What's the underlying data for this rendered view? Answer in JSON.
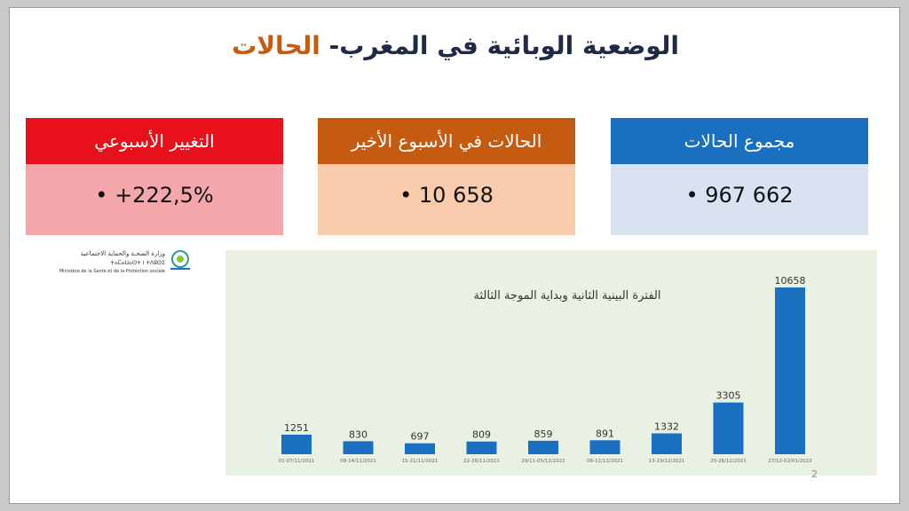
{
  "title": {
    "main": "الوضعية الوبائية في المغرب-",
    "accent": "الحالات"
  },
  "cards": {
    "total": {
      "label": "مجموع الحالات",
      "value": "662 967 •"
    },
    "last_week": {
      "label": "الحالات في الأسبوع الأخير",
      "value": "658 10 •"
    },
    "weekly_change": {
      "label": "التغيير الأسبوعي",
      "value": "222,5%+ •"
    }
  },
  "logo": {
    "ar": "وزارة الصحـة والحماية الاجتماعية",
    "tifinagh": "ⵜⴰⵎⴰⵡⴰⵙⵜ ⵏ ⵜⴷⵓⵙⵉ",
    "fr": "Ministère de la Santé et de la Protection sociale"
  },
  "page_number": "2",
  "colors": {
    "bar": "#1a6fbf",
    "total_header": "#1a6fbf",
    "week_header": "#c55a11",
    "change_header": "#e8101a"
  },
  "chart_data": {
    "type": "bar",
    "title": "الفترة البينية الثانية وبداية الموجة الثالثة",
    "categories": [
      "01-07/11/2021",
      "08-14/11/2021",
      "15-21/11/2021",
      "22-28/11/2021",
      "29/11-05/12/2021",
      "06-12/12/2021",
      "13-19/12/2021",
      "20-26/12/2021",
      "27/12-02/01/2022"
    ],
    "values": [
      1251,
      830,
      697,
      809,
      859,
      891,
      1332,
      3305,
      10658
    ],
    "value_labels": [
      "1251",
      "830",
      "697",
      "809",
      "859",
      "891",
      "1332",
      "3305",
      "10658"
    ],
    "ylim": [
      0,
      10658
    ],
    "grid": false,
    "xlabel": "",
    "ylabel": ""
  }
}
